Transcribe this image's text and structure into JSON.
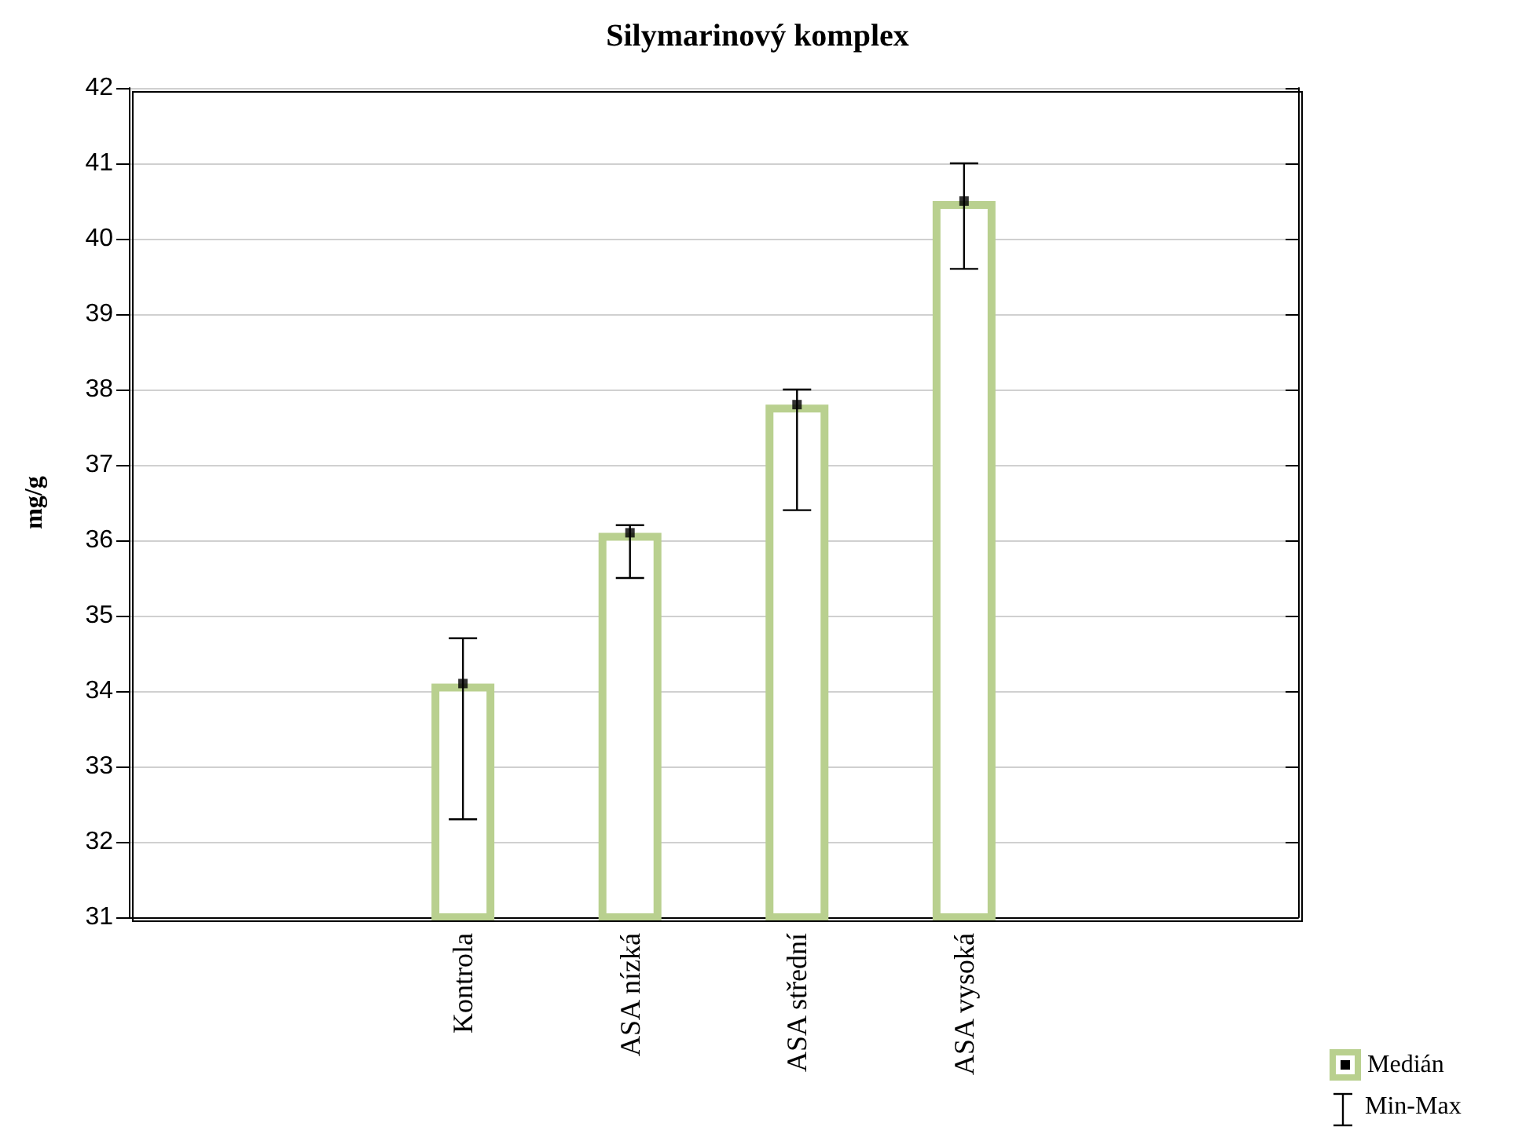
{
  "chart_data": {
    "type": "bar",
    "title": "Silymarinový komplex",
    "ylabel": "mg/g",
    "categories": [
      null,
      null,
      "Kontrola",
      "ASA nízká",
      "ASA střední",
      "ASA vysoká",
      null,
      null
    ],
    "series": [
      {
        "name": "Medián",
        "color": "#b9d08f",
        "values": [
          null,
          null,
          34.1,
          36.1,
          37.8,
          40.5,
          null,
          null
        ],
        "errors": [
          null,
          null,
          [
            32.3,
            34.7
          ],
          [
            35.5,
            36.2
          ],
          [
            36.4,
            38.0
          ],
          [
            39.6,
            41.0
          ],
          null,
          null
        ]
      },
      {
        "type": "scatter",
        "color": "#000000",
        "x": [
          "Kontrola",
          "ASA nízká",
          "ASA střední",
          "ASA vysoká"
        ],
        "values": [
          34.1,
          36.1,
          37.8,
          40.5
        ]
      }
    ],
    "annotations": [
      "Min-Max"
    ],
    "ylim": [
      31,
      42
    ],
    "yticks": [
      31,
      32,
      33,
      34,
      35,
      36,
      37,
      38,
      39,
      40,
      41,
      42
    ],
    "grid": "y",
    "legend": "bottom right",
    "marker": "square"
  }
}
